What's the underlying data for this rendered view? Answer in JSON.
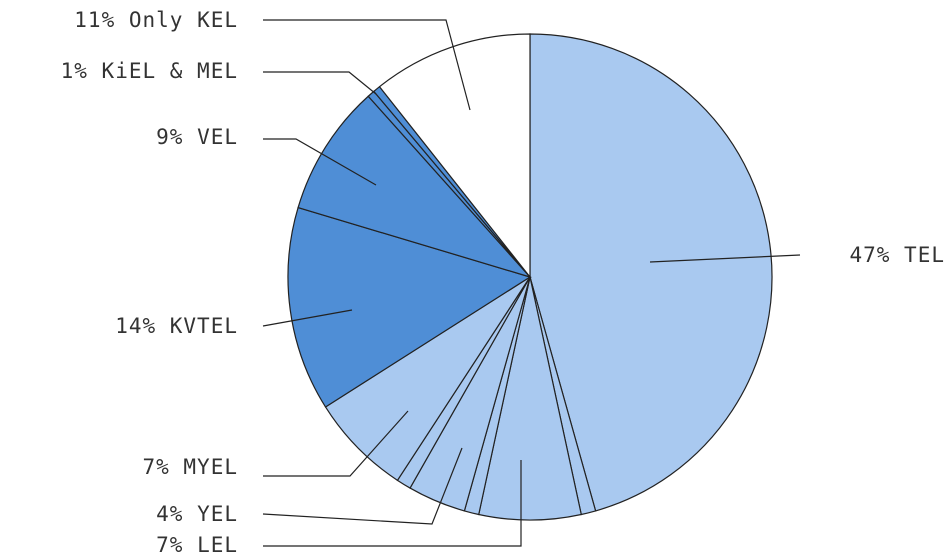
{
  "chart_data": {
    "type": "pie",
    "title": "",
    "colors": {
      "light": "#a9c9f0",
      "dark": "#4f8ed6",
      "white": "#ffffff",
      "outline": "#222222"
    },
    "slices": [
      {
        "label": "47% TEL",
        "value": 47,
        "color": "light"
      },
      {
        "label": "",
        "value": 1,
        "color": "light"
      },
      {
        "label": "7% LEL",
        "value": 7,
        "color": "light"
      },
      {
        "label": "",
        "value": 1,
        "color": "light"
      },
      {
        "label": "4% YEL",
        "value": 4,
        "color": "light"
      },
      {
        "label": "",
        "value": 1,
        "color": "light"
      },
      {
        "label": "7% MYEL",
        "value": 7,
        "color": "light"
      },
      {
        "label": "14% KVTEL",
        "value": 14,
        "color": "dark"
      },
      {
        "label": "9% VEL",
        "value": 9,
        "color": "dark"
      },
      {
        "label": "",
        "value": 0.5,
        "color": "dark"
      },
      {
        "label": "1% KiEL & MEL",
        "value": 0.5,
        "color": "dark"
      },
      {
        "label": "11% Only KEL",
        "value": 11,
        "color": "white"
      }
    ]
  }
}
